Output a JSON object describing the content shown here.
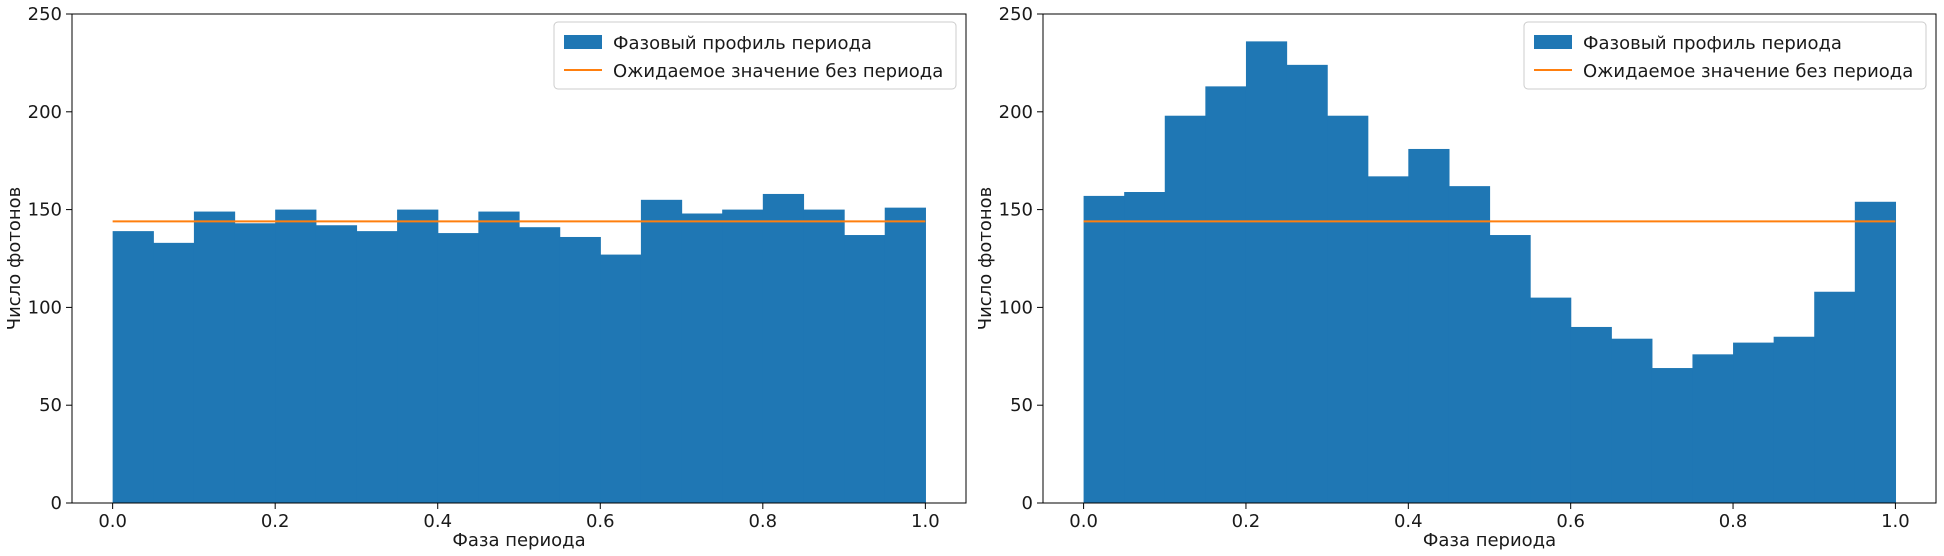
{
  "chart_data": [
    {
      "type": "bar",
      "title": "",
      "xlabel": "Фаза периода",
      "ylabel": "Число фотонов",
      "xlim": [
        -0.05,
        1.05
      ],
      "ylim": [
        0,
        250
      ],
      "xticks": [
        0.0,
        0.2,
        0.4,
        0.6,
        0.8,
        1.0
      ],
      "xtick_labels": [
        "0.0",
        "0.2",
        "0.4",
        "0.6",
        "0.8",
        "1.0"
      ],
      "yticks": [
        0,
        50,
        100,
        150,
        200,
        250
      ],
      "ytick_labels": [
        "0",
        "50",
        "100",
        "150",
        "200",
        "250"
      ],
      "grid": false,
      "legend_position": "top-right",
      "bin_edges": [
        0.0,
        0.05,
        0.1,
        0.15,
        0.2,
        0.25,
        0.3,
        0.35,
        0.4,
        0.45,
        0.5,
        0.55,
        0.6,
        0.65,
        0.7,
        0.75,
        0.8,
        0.85,
        0.9,
        0.95,
        1.0
      ],
      "series": [
        {
          "name": "Фазовый профиль периода",
          "kind": "histogram",
          "color": "#1f77b4",
          "values": [
            139,
            133,
            149,
            143,
            150,
            142,
            139,
            150,
            138,
            149,
            141,
            136,
            127,
            155,
            148,
            150,
            158,
            150,
            137,
            151
          ]
        },
        {
          "name": "Ожидаемое значение без периода",
          "kind": "line",
          "color": "#ff7f0e",
          "x": [
            0.0,
            1.0
          ],
          "y": [
            144,
            144
          ]
        }
      ]
    },
    {
      "type": "bar",
      "title": "",
      "xlabel": "Фаза периода",
      "ylabel": "Число фотонов",
      "xlim": [
        -0.05,
        1.05
      ],
      "ylim": [
        0,
        250
      ],
      "xticks": [
        0.0,
        0.2,
        0.4,
        0.6,
        0.8,
        1.0
      ],
      "xtick_labels": [
        "0.0",
        "0.2",
        "0.4",
        "0.6",
        "0.8",
        "1.0"
      ],
      "yticks": [
        0,
        50,
        100,
        150,
        200,
        250
      ],
      "ytick_labels": [
        "0",
        "50",
        "100",
        "150",
        "200",
        "250"
      ],
      "grid": false,
      "legend_position": "top-right",
      "bin_edges": [
        0.0,
        0.05,
        0.1,
        0.15,
        0.2,
        0.25,
        0.3,
        0.35,
        0.4,
        0.45,
        0.5,
        0.55,
        0.6,
        0.65,
        0.7,
        0.75,
        0.8,
        0.85,
        0.9,
        0.95,
        1.0
      ],
      "series": [
        {
          "name": "Фазовый профиль периода",
          "kind": "histogram",
          "color": "#1f77b4",
          "values": [
            157,
            159,
            198,
            213,
            236,
            224,
            198,
            167,
            181,
            162,
            137,
            105,
            90,
            84,
            69,
            76,
            82,
            85,
            108,
            154
          ]
        },
        {
          "name": "Ожидаемое значение без периода",
          "kind": "line",
          "color": "#ff7f0e",
          "x": [
            0.0,
            1.0
          ],
          "y": [
            144,
            144
          ]
        }
      ]
    }
  ]
}
